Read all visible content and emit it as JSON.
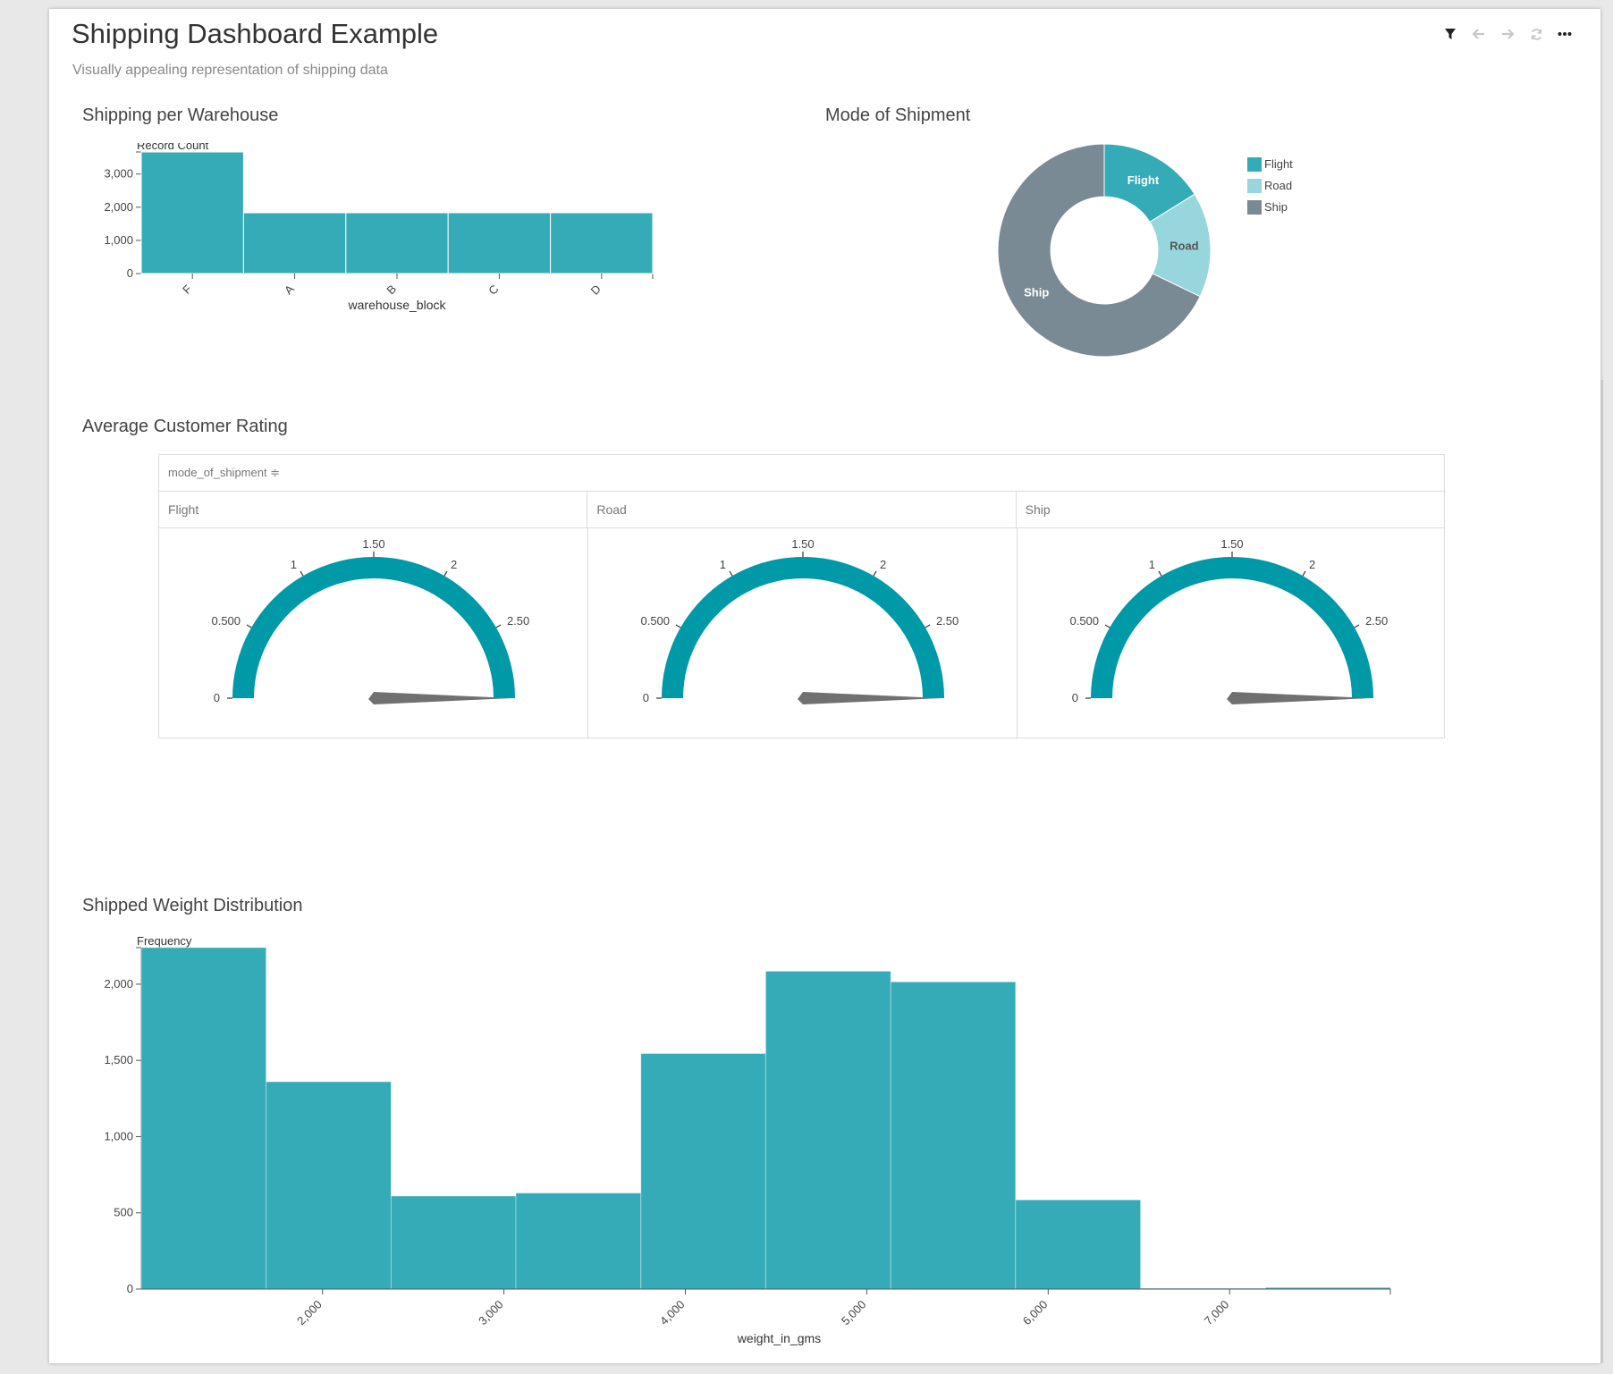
{
  "dashboard": {
    "title": "Shipping Dashboard Example",
    "subtitle": "Visually appealing representation of shipping data"
  },
  "toolbar": {
    "filter_icon": "filter-icon",
    "back_icon": "arrow-left-icon",
    "forward_icon": "arrow-right-icon",
    "refresh_icon": "refresh-icon",
    "more_icon": "more-icon"
  },
  "colors": {
    "teal": "#35abb7",
    "light_teal": "#98d6dd",
    "gray": "#7a8a94",
    "gauge": "#0099a8",
    "needle": "#707070"
  },
  "panels": {
    "warehouse_title": "Shipping per Warehouse",
    "mode_title": "Mode of Shipment",
    "rating_title": "Average Customer Rating",
    "weight_title": "Shipped Weight Distribution"
  },
  "rating_table": {
    "header": "mode_of_shipment ≑",
    "columns": [
      "Flight",
      "Road",
      "Ship"
    ]
  },
  "chart_data": [
    {
      "id": "warehouse",
      "type": "bar",
      "title": "Shipping per Warehouse",
      "xlabel": "warehouse_block",
      "ylabel": "Record Count",
      "categories": [
        "F",
        "A",
        "B",
        "C",
        "D"
      ],
      "values": [
        3666,
        1833,
        1833,
        1834,
        1834
      ],
      "ylim": [
        0,
        3666
      ],
      "yticks": [
        0,
        1000,
        2000,
        3000
      ],
      "ytick_labels": [
        "0",
        "1,000",
        "2,000",
        "3,000"
      ]
    },
    {
      "id": "mode",
      "type": "pie",
      "title": "Mode of Shipment",
      "labels": [
        "Flight",
        "Road",
        "Ship"
      ],
      "values": [
        1777,
        1760,
        7462
      ],
      "legend_position": "top-right"
    },
    {
      "id": "rating",
      "type": "gauge",
      "title": "Average Customer Rating",
      "series": [
        {
          "name": "Flight",
          "value": 3.0
        },
        {
          "name": "Road",
          "value": 3.0
        },
        {
          "name": "Ship",
          "value": 3.0
        }
      ],
      "range": [
        0,
        3
      ],
      "ticks": [
        0,
        0.5,
        1,
        1.5,
        2,
        2.5
      ],
      "tick_labels": [
        "0",
        "0.500",
        "1",
        "1.50",
        "2",
        "2.50"
      ]
    },
    {
      "id": "weight",
      "type": "bar",
      "title": "Shipped Weight Distribution",
      "xlabel": "weight_in_gms",
      "ylabel": "Frequency",
      "bins": [
        {
          "x0": 1001,
          "x1": 1689,
          "count": 2240
        },
        {
          "x0": 1689,
          "x1": 2378,
          "count": 1360
        },
        {
          "x0": 2378,
          "x1": 3066,
          "count": 610
        },
        {
          "x0": 3066,
          "x1": 3755,
          "count": 630
        },
        {
          "x0": 3755,
          "x1": 4443,
          "count": 1545
        },
        {
          "x0": 4443,
          "x1": 5132,
          "count": 2085
        },
        {
          "x0": 5132,
          "x1": 5820,
          "count": 2015
        },
        {
          "x0": 5820,
          "x1": 6509,
          "count": 585
        },
        {
          "x0": 6509,
          "x1": 7197,
          "count": 5
        },
        {
          "x0": 7197,
          "x1": 7886,
          "count": 10
        }
      ],
      "xlim": [
        1001,
        7886
      ],
      "ylim": [
        0,
        2240
      ],
      "xticks": [
        2000,
        3000,
        4000,
        5000,
        6000,
        7000
      ],
      "xtick_labels": [
        "2,000",
        "3,000",
        "4,000",
        "5,000",
        "6,000",
        "7,000"
      ],
      "yticks": [
        0,
        500,
        1000,
        1500,
        2000
      ],
      "ytick_labels": [
        "0",
        "500",
        "1,000",
        "1,500",
        "2,000"
      ]
    }
  ]
}
